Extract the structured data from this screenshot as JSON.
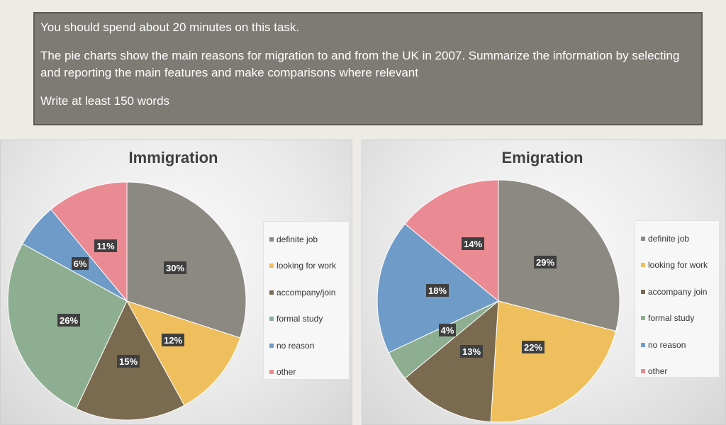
{
  "prompt": {
    "line1": "You should spend about 20 minutes on this task.",
    "line2": "The pie charts show the main reasons for migration to and from the UK in 2007. Summarize the information by selecting and reporting the main features and make comparisons where relevant",
    "line3": "Write at least 150 words"
  },
  "colors": {
    "definite job": "#8c8983",
    "looking for work": "#eebf5c",
    "accompany/join": "#7a6a4f",
    "formal study": "#8eae91",
    "no reason": "#6f9bc8",
    "other": "#ea8a93"
  },
  "chart_data": [
    {
      "type": "pie",
      "title": "Immigration",
      "categories": [
        "definite job",
        "looking for work",
        "accompany/join",
        "formal study",
        "no reason",
        "other"
      ],
      "values": [
        30,
        12,
        15,
        26,
        6,
        11
      ],
      "labels": [
        "30%",
        "12%",
        "15%",
        "26%",
        "6%",
        "11%"
      ],
      "legend": "right"
    },
    {
      "type": "pie",
      "title": "Emigration",
      "categories": [
        "definite job",
        "looking for work",
        "accompany join",
        "formal study",
        "no reason",
        "other"
      ],
      "values": [
        29,
        22,
        13,
        4,
        18,
        14
      ],
      "labels": [
        "29%",
        "22%",
        "13%",
        "4%",
        "18%",
        "14%"
      ],
      "legend": "right"
    }
  ]
}
